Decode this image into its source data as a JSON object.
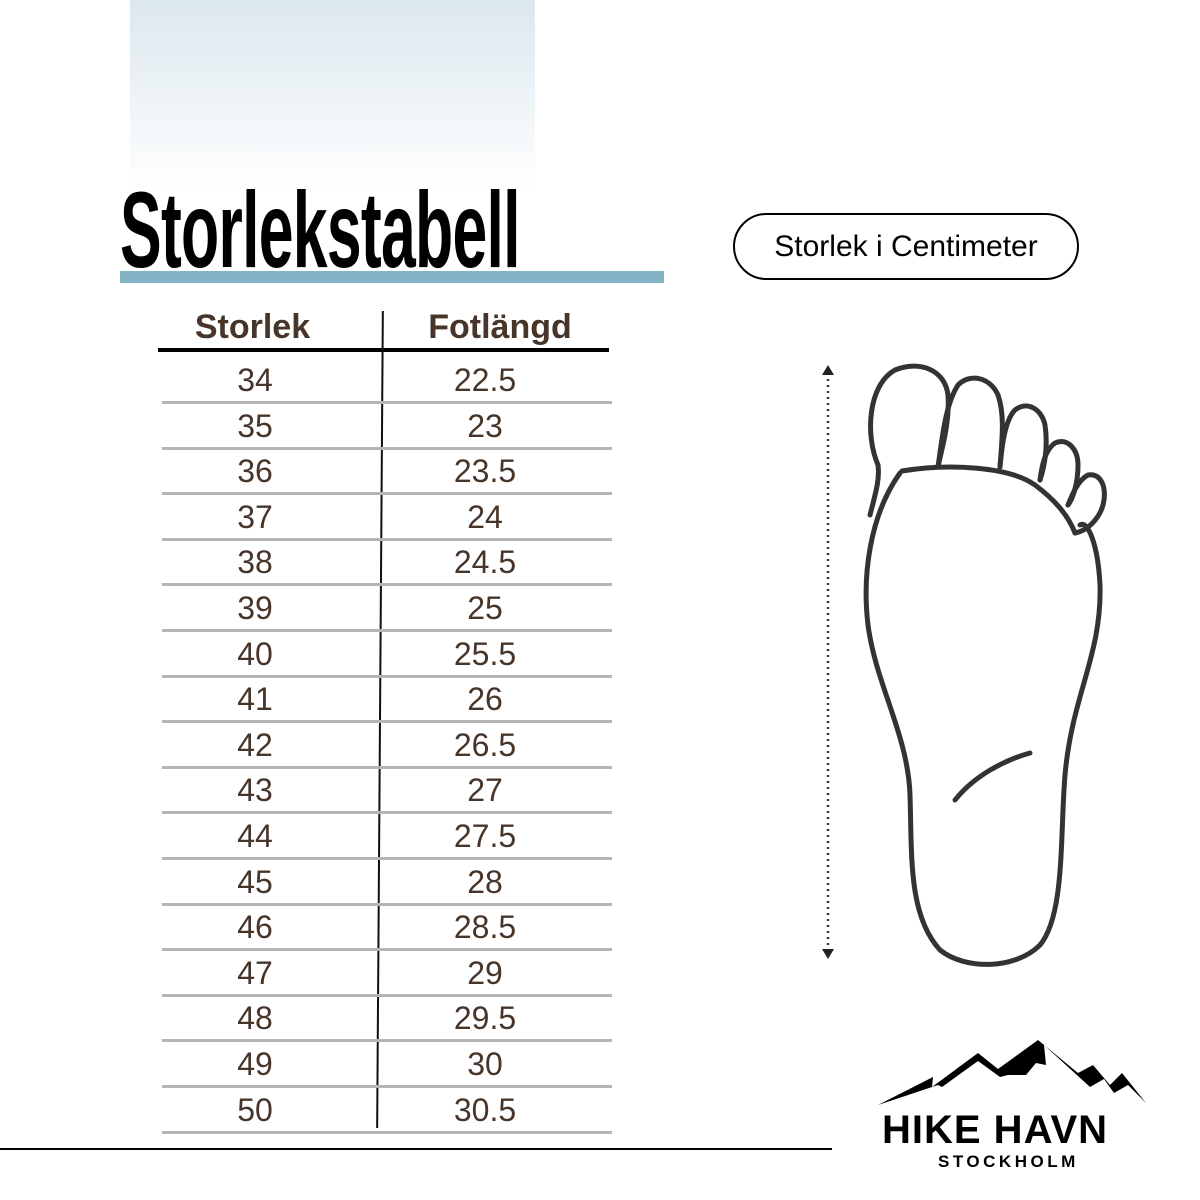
{
  "title": "Storlekstabell",
  "unit_label": "Storlek i Centimeter",
  "table": {
    "headers": [
      "Storlek",
      "Fotlängd"
    ],
    "rows": [
      [
        "34",
        "22.5"
      ],
      [
        "35",
        "23"
      ],
      [
        "36",
        "23.5"
      ],
      [
        "37",
        "24"
      ],
      [
        "38",
        "24.5"
      ],
      [
        "39",
        "25"
      ],
      [
        "40",
        "25.5"
      ],
      [
        "41",
        "26"
      ],
      [
        "42",
        "26.5"
      ],
      [
        "43",
        "27"
      ],
      [
        "44",
        "27.5"
      ],
      [
        "45",
        "28"
      ],
      [
        "46",
        "28.5"
      ],
      [
        "47",
        "29"
      ],
      [
        "48",
        "29.5"
      ],
      [
        "49",
        "30"
      ],
      [
        "50",
        "30.5"
      ]
    ]
  },
  "brand": {
    "name": "HIKE HAVN",
    "sub": "STOCKHOLM"
  },
  "colors": {
    "accent_bar": "#84b3c6",
    "table_text": "#47352a"
  },
  "icons": [
    "foot-outline-icon",
    "length-arrow-icon",
    "mountain-logo-icon"
  ]
}
